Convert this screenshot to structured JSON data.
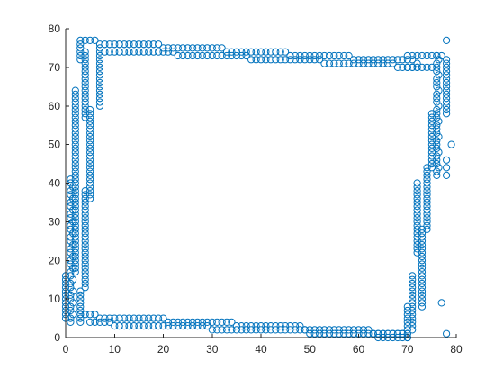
{
  "chart_data": {
    "type": "scatter",
    "title": "",
    "xlabel": "",
    "ylabel": "",
    "xlim": [
      0,
      80
    ],
    "ylim": [
      0,
      80
    ],
    "xticks": [
      "0",
      "10",
      "20",
      "30",
      "40",
      "50",
      "60",
      "70",
      "80"
    ],
    "yticks": [
      "0",
      "10",
      "20",
      "30",
      "40",
      "50",
      "60",
      "70",
      "80"
    ],
    "grid": false,
    "legend": "none",
    "marker": "circle",
    "color": "#0072BD",
    "series": [
      {
        "description": "open circles tracing a rectangular outline",
        "left_edge_x": [
          1,
          2,
          4,
          5
        ],
        "top_edge_y": [
          70,
          77
        ],
        "right_edge_x": [
          72,
          77
        ],
        "bottom_edge_y": [
          0,
          6
        ],
        "outliers": [
          [
            78,
            77
          ],
          [
            79,
            50
          ],
          [
            78,
            46
          ],
          [
            78,
            44
          ],
          [
            78,
            42
          ],
          [
            77,
            9
          ],
          [
            78,
            1
          ]
        ]
      }
    ]
  }
}
